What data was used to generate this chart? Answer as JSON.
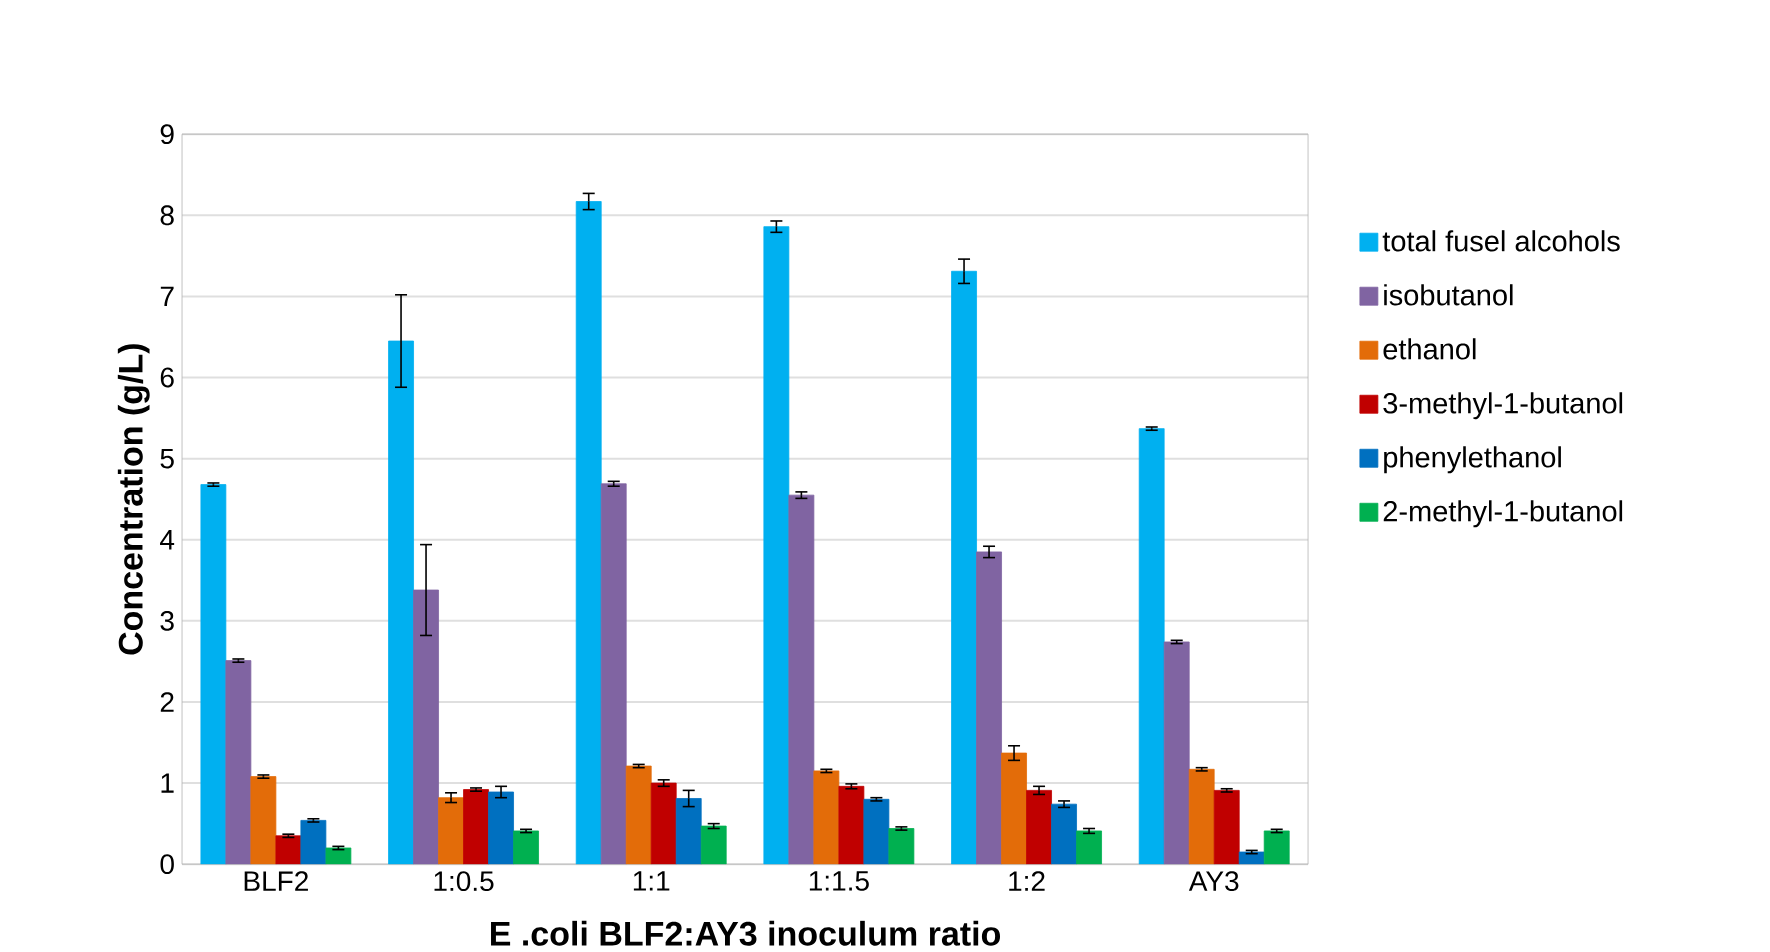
{
  "chart_data": {
    "type": "bar",
    "xlabel": "E .coli BLF2:AY3 inoculum ratio",
    "ylabel": "Concentration (g/L)",
    "categories": [
      "BLF2",
      "1:0.5",
      "1:1",
      "1:1.5",
      "1:2",
      "AY3"
    ],
    "ylim": [
      0,
      9
    ],
    "yticks": [
      0,
      1,
      2,
      3,
      4,
      5,
      6,
      7,
      8,
      9
    ],
    "grid": "y",
    "legend": "right",
    "series": [
      {
        "name": "total fusel alcohols",
        "color": "#00b0f0",
        "values": [
          4.68,
          6.45,
          8.17,
          7.86,
          7.31,
          5.37
        ],
        "errors": [
          0.02,
          0.57,
          0.1,
          0.07,
          0.15,
          0.02
        ]
      },
      {
        "name": "isobutanol",
        "color": "#8064a2",
        "values": [
          2.51,
          3.38,
          4.69,
          4.55,
          3.85,
          2.74
        ],
        "errors": [
          0.02,
          0.56,
          0.03,
          0.04,
          0.07,
          0.02
        ]
      },
      {
        "name": "ethanol",
        "color": "#e36c09",
        "values": [
          1.08,
          0.82,
          1.21,
          1.15,
          1.37,
          1.17
        ],
        "errors": [
          0.02,
          0.06,
          0.02,
          0.02,
          0.09,
          0.02
        ]
      },
      {
        "name": "3-methyl-1-butanol",
        "color": "#c00000",
        "values": [
          0.35,
          0.92,
          1.0,
          0.96,
          0.91,
          0.91
        ],
        "errors": [
          0.02,
          0.02,
          0.04,
          0.03,
          0.05,
          0.02
        ]
      },
      {
        "name": "phenylethanol",
        "color": "#0070c0",
        "values": [
          0.54,
          0.89,
          0.81,
          0.8,
          0.74,
          0.15
        ],
        "errors": [
          0.02,
          0.07,
          0.1,
          0.02,
          0.04,
          0.02
        ]
      },
      {
        "name": "2-methyl-1-butanol",
        "color": "#00b050",
        "values": [
          0.2,
          0.41,
          0.47,
          0.44,
          0.41,
          0.41
        ],
        "errors": [
          0.02,
          0.02,
          0.03,
          0.02,
          0.03,
          0.02
        ]
      }
    ]
  }
}
